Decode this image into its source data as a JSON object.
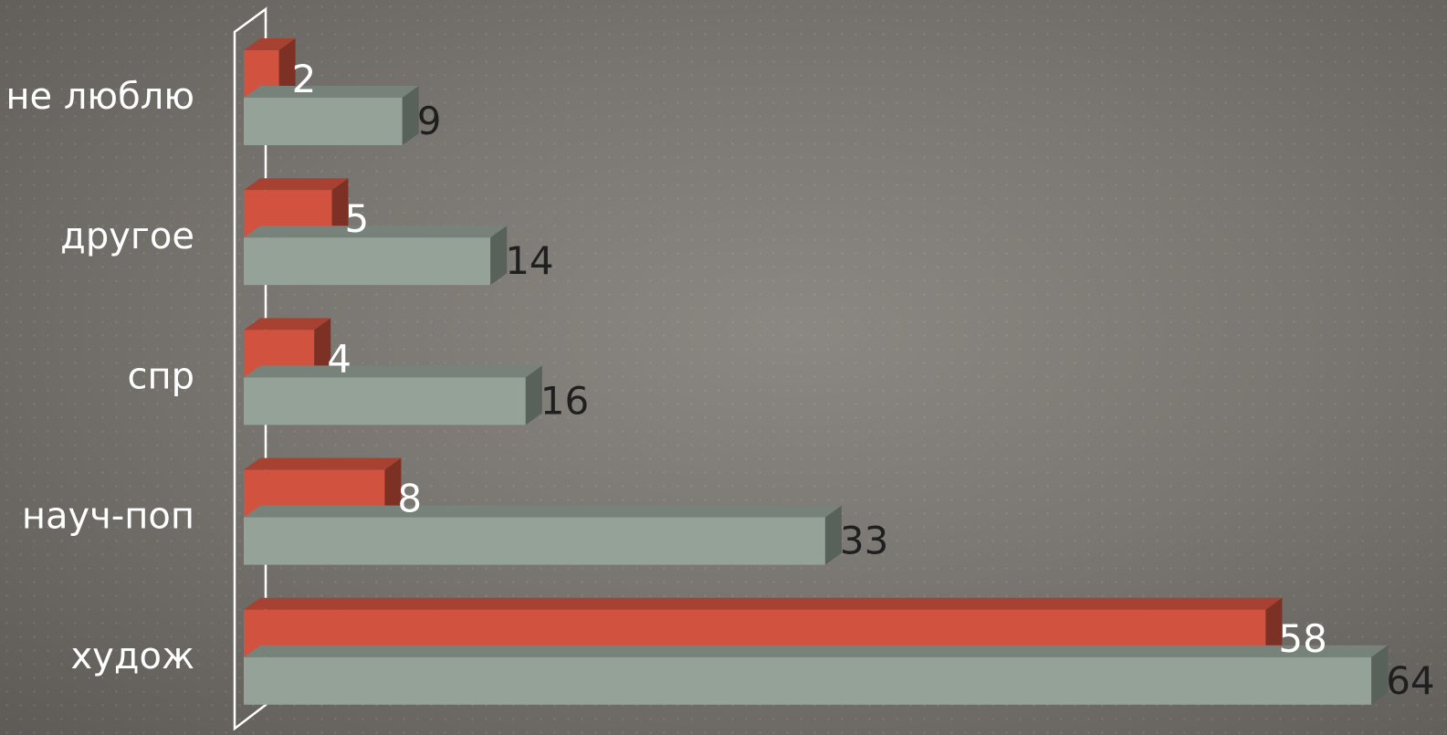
{
  "chart_data": {
    "type": "bar",
    "orientation": "horizontal",
    "categories": [
      "не люблю",
      "другое",
      "спр",
      "науч-поп",
      "худож"
    ],
    "series": [
      {
        "values": [
          2,
          5,
          4,
          8,
          58
        ],
        "color": "#d1523e"
      },
      {
        "values": [
          9,
          14,
          16,
          33,
          64
        ],
        "color": "#95a298"
      }
    ],
    "xlim": [
      0,
      64
    ],
    "grid": false,
    "legend": "none",
    "data_labels": true
  }
}
